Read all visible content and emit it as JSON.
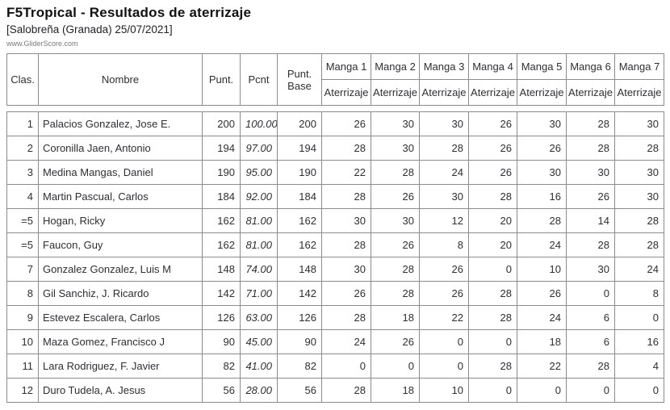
{
  "page": {
    "title": "F5Tropical - Resultados de aterrizaje",
    "subtitle": "[Salobreña (Granada) 25/07/2021]",
    "watermark": "www.GliderScore.com"
  },
  "table": {
    "columns": {
      "clas": "Clas.",
      "nombre": "Nombre",
      "punt": "Punt.",
      "pcnt": "Pcnt",
      "punt_base": "Punt. Base"
    },
    "manga_headers": [
      {
        "label": "Manga 1",
        "sub": "Aterrizaje"
      },
      {
        "label": "Manga 2",
        "sub": "Aterrizaje"
      },
      {
        "label": "Manga 3",
        "sub": "Aterrizaje"
      },
      {
        "label": "Manga 4",
        "sub": "Aterrizaje"
      },
      {
        "label": "Manga 5",
        "sub": "Aterrizaje"
      },
      {
        "label": "Manga 6",
        "sub": "Aterrizaje"
      },
      {
        "label": "Manga 7",
        "sub": "Aterrizaje"
      }
    ],
    "rows": [
      {
        "clas": "1",
        "nombre": "Palacios Gonzalez, Jose E.",
        "punt": "200",
        "pcnt": "100.00",
        "punt_base": "200",
        "mangas": [
          26,
          30,
          30,
          26,
          30,
          28,
          30
        ]
      },
      {
        "clas": "2",
        "nombre": "Coronilla Jaen, Antonio",
        "punt": "194",
        "pcnt": "97.00",
        "punt_base": "194",
        "mangas": [
          28,
          30,
          28,
          26,
          26,
          28,
          28
        ]
      },
      {
        "clas": "3",
        "nombre": "Medina Mangas, Daniel",
        "punt": "190",
        "pcnt": "95.00",
        "punt_base": "190",
        "mangas": [
          22,
          28,
          24,
          26,
          30,
          30,
          30
        ]
      },
      {
        "clas": "4",
        "nombre": "Martin Pascual, Carlos",
        "punt": "184",
        "pcnt": "92.00",
        "punt_base": "184",
        "mangas": [
          28,
          26,
          30,
          28,
          16,
          26,
          30
        ]
      },
      {
        "clas": "=5",
        "nombre": "Hogan, Ricky",
        "punt": "162",
        "pcnt": "81.00",
        "punt_base": "162",
        "mangas": [
          30,
          30,
          12,
          20,
          28,
          14,
          28
        ]
      },
      {
        "clas": "=5",
        "nombre": "Faucon, Guy",
        "punt": "162",
        "pcnt": "81.00",
        "punt_base": "162",
        "mangas": [
          28,
          26,
          8,
          20,
          24,
          28,
          28
        ]
      },
      {
        "clas": "7",
        "nombre": "Gonzalez Gonzalez, Luis M",
        "punt": "148",
        "pcnt": "74.00",
        "punt_base": "148",
        "mangas": [
          30,
          28,
          26,
          0,
          10,
          30,
          24
        ]
      },
      {
        "clas": "8",
        "nombre": "Gil Sanchiz, J. Ricardo",
        "punt": "142",
        "pcnt": "71.00",
        "punt_base": "142",
        "mangas": [
          26,
          28,
          26,
          28,
          26,
          0,
          8
        ]
      },
      {
        "clas": "9",
        "nombre": "Estevez Escalera, Carlos",
        "punt": "126",
        "pcnt": "63.00",
        "punt_base": "126",
        "mangas": [
          28,
          18,
          22,
          28,
          24,
          6,
          0
        ]
      },
      {
        "clas": "10",
        "nombre": "Maza Gomez, Francisco J",
        "punt": "90",
        "pcnt": "45.00",
        "punt_base": "90",
        "mangas": [
          24,
          26,
          0,
          0,
          18,
          6,
          16
        ]
      },
      {
        "clas": "11",
        "nombre": "Lara Rodriguez, F. Javier",
        "punt": "82",
        "pcnt": "41.00",
        "punt_base": "82",
        "mangas": [
          0,
          0,
          0,
          28,
          22,
          28,
          4
        ]
      },
      {
        "clas": "12",
        "nombre": "Duro Tudela, A. Jesus",
        "punt": "56",
        "pcnt": "28.00",
        "punt_base": "56",
        "mangas": [
          28,
          18,
          10,
          0,
          0,
          0,
          0
        ]
      }
    ]
  },
  "colors": {
    "border": "#8c8c8c",
    "text": "#2e2e36",
    "title": "#111111",
    "watermark": "#7a7a7a",
    "background": "#ffffff"
  }
}
